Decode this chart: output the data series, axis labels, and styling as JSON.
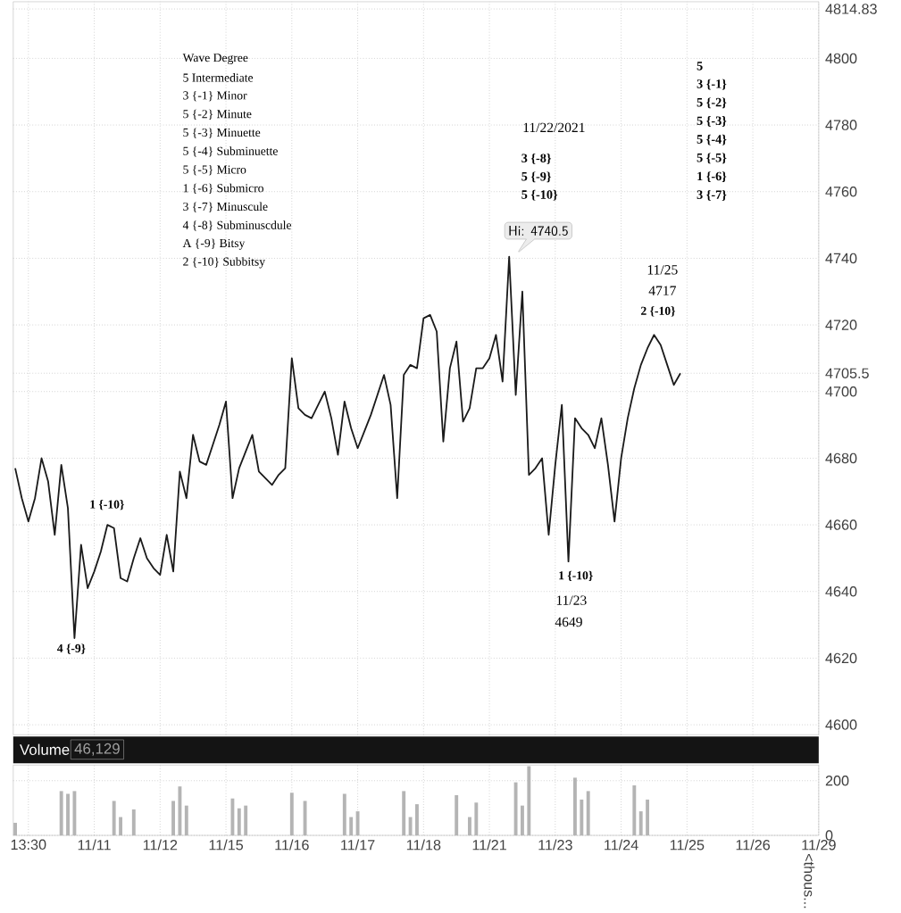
{
  "chart_data": [
    {
      "type": "line",
      "grid": true,
      "tick_labels": "y",
      "categories": [
        null,
        null,
        null,
        null,
        null,
        null,
        null,
        null,
        null,
        null,
        null,
        null,
        null,
        null,
        null,
        null,
        null,
        null,
        null,
        null,
        null,
        null,
        null,
        null,
        null,
        null,
        null,
        null,
        null,
        null,
        null,
        null,
        null,
        null,
        null,
        null,
        null,
        null,
        null,
        null,
        null,
        null,
        null,
        null,
        null,
        null,
        null,
        null,
        null,
        null,
        null,
        null,
        null,
        null,
        null,
        null,
        null,
        null,
        null,
        null,
        null,
        null,
        null,
        null,
        null,
        null,
        null,
        null,
        null,
        null,
        null,
        null,
        null,
        null,
        null,
        null,
        null,
        null,
        null,
        null,
        null,
        null,
        null,
        null,
        null,
        null,
        null,
        null,
        null,
        null,
        null,
        null,
        null,
        null,
        null,
        null,
        null,
        null,
        null,
        null,
        null,
        null,
        null,
        null,
        null,
        null,
        null,
        null,
        null,
        null,
        null,
        null,
        null,
        null,
        null,
        null,
        null,
        null,
        null,
        null,
        null,
        null,
        null
      ],
      "ylim": [
        4597,
        4817
      ],
      "yticks": [
        4600,
        4620,
        4640,
        4660,
        4680,
        4700,
        4705.5,
        4720,
        4740,
        4760,
        4780,
        4800,
        4814.83
      ],
      "series": [
        {
          "color": "#1a1a1a",
          "values": [
            4677,
            4668,
            4661,
            4668,
            4680,
            4673,
            4657,
            4678,
            4665,
            4626,
            4654,
            4641,
            4646,
            4652,
            4660,
            4659,
            4644,
            4643,
            4650,
            4656,
            4650,
            4647,
            4645,
            4657,
            4646,
            4676,
            4668,
            4687,
            4679,
            4678,
            4684,
            4690,
            4697,
            4668,
            4677,
            4682,
            4687,
            4676,
            4674,
            4672,
            4675,
            4677,
            4710,
            4695,
            4693,
            4692,
            4696,
            4700,
            4692,
            4681,
            4697,
            4689,
            4683,
            4688,
            4693,
            4699,
            4705,
            4696,
            4668,
            4705,
            4708,
            4707,
            4722,
            4723,
            4718,
            4685,
            4707,
            4715,
            4691,
            4695,
            4707,
            4707,
            4710,
            4717,
            4703,
            4740.5,
            4699,
            4730,
            4675,
            4677,
            4680,
            4657,
            4678,
            4696,
            4649,
            4692,
            4689,
            4687,
            4683,
            4692,
            4678,
            4661,
            4680,
            4692,
            4701,
            4708,
            4713,
            4717,
            4714,
            4708,
            4702,
            4705.5,
            null,
            null,
            null,
            null,
            null,
            null,
            null,
            null,
            null,
            null,
            null,
            null,
            null,
            null,
            null,
            null,
            null,
            null,
            null,
            null,
            null
          ]
        }
      ],
      "annotations": [
        "Wave Degree",
        "5 Intermediate",
        "3 {-1} Minor",
        "5 {-2} Minute",
        "5 {-3} Minuette",
        "5 {-4} Subminuette",
        "5 {-5} Micro",
        "1 {-6} Submicro",
        "3 {-7} Minuscule",
        "4 {-8} Subminuscdule",
        "A {-9} Bitsy",
        "2 {-10} Subbitsy",
        "11/22/2021",
        "3 {-8}",
        "5 {-9}",
        "5 {-10}",
        "5",
        "3 {-1}",
        "5 {-2}",
        "5 {-3}",
        "5 {-4}",
        "5 {-5}",
        "1 {-6}",
        "3 {-7}",
        "Hi: 4740.5",
        "1 {-10}",
        "4 {-9}",
        "1 {-10}",
        "11/23",
        "4649",
        "11/25",
        "4717",
        "2 {-10}"
      ]
    },
    {
      "type": "bar",
      "title": "Volume",
      "ylabel": "<thous...",
      "grid": true,
      "categories": [
        null,
        null,
        "13:30",
        null,
        null,
        null,
        null,
        null,
        null,
        null,
        null,
        null,
        "11/11",
        null,
        null,
        null,
        null,
        null,
        null,
        null,
        null,
        null,
        "11/12",
        null,
        null,
        null,
        null,
        null,
        null,
        null,
        null,
        null,
        "11/15",
        null,
        null,
        null,
        null,
        null,
        null,
        null,
        null,
        null,
        "11/16",
        null,
        null,
        null,
        null,
        null,
        null,
        null,
        null,
        null,
        "11/17",
        null,
        null,
        null,
        null,
        null,
        null,
        null,
        null,
        null,
        "11/18",
        null,
        null,
        null,
        null,
        null,
        null,
        null,
        null,
        null,
        "11/21",
        null,
        null,
        null,
        null,
        null,
        null,
        null,
        null,
        null,
        "11/23",
        null,
        null,
        null,
        null,
        null,
        null,
        null,
        null,
        null,
        "11/24",
        null,
        null,
        null,
        null,
        null,
        null,
        null,
        null,
        null,
        "11/25",
        null,
        null,
        null,
        null,
        null,
        null,
        null,
        null,
        null,
        "11/26",
        null,
        null,
        null,
        null,
        null,
        null,
        null,
        null,
        null,
        "11/29"
      ],
      "ylim": [
        0,
        257
      ],
      "yticks": [
        0,
        200
      ],
      "series": [
        {
          "color": "#b4b4b4",
          "values": [
            46,
            null,
            null,
            null,
            null,
            null,
            null,
            162,
            152,
            162,
            null,
            null,
            null,
            null,
            null,
            126,
            67,
            null,
            95,
            null,
            null,
            null,
            null,
            null,
            126,
            179,
            109,
            null,
            null,
            null,
            null,
            null,
            null,
            135,
            99,
            109,
            null,
            null,
            null,
            null,
            null,
            null,
            156,
            null,
            126,
            null,
            null,
            null,
            null,
            null,
            152,
            67,
            88,
            null,
            null,
            null,
            null,
            null,
            null,
            162,
            67,
            114,
            null,
            null,
            null,
            null,
            null,
            147,
            null,
            67,
            120,
            null,
            null,
            null,
            null,
            null,
            194,
            109,
            253,
            null,
            null,
            null,
            null,
            null,
            null,
            211,
            131,
            162,
            null,
            null,
            null,
            null,
            null,
            null,
            183,
            88,
            131,
            null,
            null,
            null,
            null,
            null,
            null,
            null,
            null,
            null,
            null,
            null,
            null,
            null,
            null,
            null,
            null,
            null,
            null,
            null,
            null,
            null,
            null,
            null,
            null,
            null,
            null
          ]
        }
      ],
      "annotations": [
        "46,129"
      ]
    }
  ]
}
